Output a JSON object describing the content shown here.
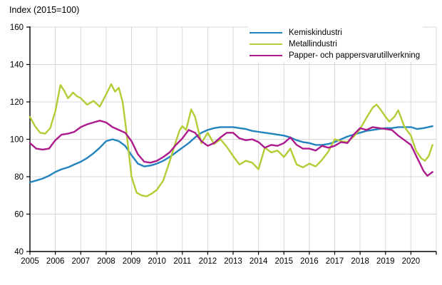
{
  "page": {
    "title": "Index (2015=100)"
  },
  "chart_data": {
    "type": "line",
    "title": "Index (2015=100)",
    "xlabel": "",
    "ylabel": "Index (2015=100)",
    "xlim": [
      2005,
      2021
    ],
    "ylim": [
      40,
      160
    ],
    "y_ticks": [
      40,
      60,
      80,
      100,
      120,
      140,
      160
    ],
    "x_ticks": [
      2005,
      2006,
      2007,
      2008,
      2009,
      2010,
      2011,
      2012,
      2013,
      2014,
      2015,
      2016,
      2017,
      2018,
      2019,
      2020
    ],
    "grid": true,
    "grid_color": "#d9d9d9",
    "axis_color": "#000000",
    "legend_position": "top-right-inside",
    "series": [
      {
        "name": "Kemiskindustri",
        "color": "#2283bd",
        "points": [
          [
            2005.0,
            77
          ],
          [
            2005.25,
            78
          ],
          [
            2005.5,
            79
          ],
          [
            2005.75,
            80.5
          ],
          [
            2006.0,
            82.5
          ],
          [
            2006.25,
            84
          ],
          [
            2006.5,
            85
          ],
          [
            2006.75,
            86.5
          ],
          [
            2007.0,
            88
          ],
          [
            2007.25,
            90
          ],
          [
            2007.5,
            92.5
          ],
          [
            2007.75,
            95.5
          ],
          [
            2008.0,
            99
          ],
          [
            2008.25,
            100
          ],
          [
            2008.5,
            99
          ],
          [
            2008.75,
            96.5
          ],
          [
            2009.0,
            91.5
          ],
          [
            2009.25,
            87
          ],
          [
            2009.5,
            85.5
          ],
          [
            2009.75,
            86
          ],
          [
            2010.0,
            87
          ],
          [
            2010.25,
            88.5
          ],
          [
            2010.5,
            90.5
          ],
          [
            2010.75,
            93
          ],
          [
            2011.0,
            95.5
          ],
          [
            2011.25,
            98
          ],
          [
            2011.5,
            101
          ],
          [
            2011.75,
            103.5
          ],
          [
            2012.0,
            105
          ],
          [
            2012.25,
            106
          ],
          [
            2012.5,
            106.5
          ],
          [
            2012.75,
            106.5
          ],
          [
            2013.0,
            106.5
          ],
          [
            2013.25,
            106
          ],
          [
            2013.5,
            105.5
          ],
          [
            2013.75,
            104.5
          ],
          [
            2014.0,
            104
          ],
          [
            2014.25,
            103.5
          ],
          [
            2014.5,
            103
          ],
          [
            2014.75,
            102.5
          ],
          [
            2015.0,
            102
          ],
          [
            2015.25,
            101
          ],
          [
            2015.5,
            99.5
          ],
          [
            2015.75,
            98.5
          ],
          [
            2016.0,
            98
          ],
          [
            2016.25,
            97
          ],
          [
            2016.5,
            97
          ],
          [
            2016.75,
            97.5
          ],
          [
            2017.0,
            98.5
          ],
          [
            2017.25,
            100
          ],
          [
            2017.5,
            101.5
          ],
          [
            2017.75,
            102.5
          ],
          [
            2018.0,
            103.5
          ],
          [
            2018.25,
            104.5
          ],
          [
            2018.5,
            105
          ],
          [
            2018.75,
            105.5
          ],
          [
            2019.0,
            106
          ],
          [
            2019.25,
            106
          ],
          [
            2019.5,
            106.5
          ],
          [
            2019.75,
            106.5
          ],
          [
            2020.0,
            106.5
          ],
          [
            2020.25,
            105.5
          ],
          [
            2020.5,
            106
          ],
          [
            2020.85,
            107
          ]
        ]
      },
      {
        "name": "Metallindustri",
        "color": "#b4cc35",
        "points": [
          [
            2005.0,
            112
          ],
          [
            2005.2,
            107
          ],
          [
            2005.4,
            103.5
          ],
          [
            2005.6,
            103
          ],
          [
            2005.8,
            106
          ],
          [
            2006.0,
            115
          ],
          [
            2006.2,
            129
          ],
          [
            2006.35,
            126
          ],
          [
            2006.5,
            122
          ],
          [
            2006.7,
            125
          ],
          [
            2006.85,
            123
          ],
          [
            2007.0,
            122
          ],
          [
            2007.25,
            118.5
          ],
          [
            2007.5,
            120.5
          ],
          [
            2007.75,
            117.5
          ],
          [
            2008.0,
            124
          ],
          [
            2008.2,
            129.5
          ],
          [
            2008.35,
            125.5
          ],
          [
            2008.5,
            127.5
          ],
          [
            2008.65,
            120
          ],
          [
            2008.8,
            104
          ],
          [
            2009.0,
            80
          ],
          [
            2009.2,
            71.5
          ],
          [
            2009.4,
            70
          ],
          [
            2009.6,
            69.5
          ],
          [
            2009.8,
            71
          ],
          [
            2010.0,
            73
          ],
          [
            2010.25,
            78
          ],
          [
            2010.5,
            88
          ],
          [
            2010.75,
            99
          ],
          [
            2010.9,
            105
          ],
          [
            2011.0,
            107
          ],
          [
            2011.15,
            105
          ],
          [
            2011.35,
            116
          ],
          [
            2011.5,
            112
          ],
          [
            2011.75,
            98
          ],
          [
            2012.0,
            103.5
          ],
          [
            2012.25,
            97.5
          ],
          [
            2012.5,
            100
          ],
          [
            2012.75,
            96
          ],
          [
            2013.0,
            91
          ],
          [
            2013.25,
            86.5
          ],
          [
            2013.5,
            88.5
          ],
          [
            2013.75,
            87.5
          ],
          [
            2014.0,
            84
          ],
          [
            2014.25,
            95.5
          ],
          [
            2014.5,
            93
          ],
          [
            2014.75,
            94
          ],
          [
            2015.0,
            90.5
          ],
          [
            2015.25,
            95
          ],
          [
            2015.5,
            86.5
          ],
          [
            2015.75,
            85
          ],
          [
            2016.0,
            87
          ],
          [
            2016.25,
            85.5
          ],
          [
            2016.5,
            89
          ],
          [
            2016.75,
            93.5
          ],
          [
            2017.0,
            100
          ],
          [
            2017.25,
            99
          ],
          [
            2017.5,
            98.5
          ],
          [
            2017.75,
            101.5
          ],
          [
            2018.0,
            105.5
          ],
          [
            2018.25,
            111.5
          ],
          [
            2018.5,
            117
          ],
          [
            2018.65,
            118.5
          ],
          [
            2018.8,
            116
          ],
          [
            2019.0,
            112
          ],
          [
            2019.15,
            109.5
          ],
          [
            2019.35,
            112
          ],
          [
            2019.5,
            115.5
          ],
          [
            2019.75,
            106.5
          ],
          [
            2020.0,
            102
          ],
          [
            2020.2,
            94
          ],
          [
            2020.4,
            90
          ],
          [
            2020.55,
            88.5
          ],
          [
            2020.7,
            91
          ],
          [
            2020.85,
            97
          ]
        ]
      },
      {
        "name": "Papper- och pappersvarutillverkning",
        "color": "#ac1a8c",
        "points": [
          [
            2005.0,
            98
          ],
          [
            2005.25,
            95
          ],
          [
            2005.5,
            94.5
          ],
          [
            2005.75,
            95
          ],
          [
            2006.0,
            99.5
          ],
          [
            2006.25,
            102.5
          ],
          [
            2006.5,
            103
          ],
          [
            2006.75,
            104
          ],
          [
            2007.0,
            106.5
          ],
          [
            2007.25,
            108
          ],
          [
            2007.5,
            109
          ],
          [
            2007.75,
            110
          ],
          [
            2008.0,
            109
          ],
          [
            2008.25,
            106.5
          ],
          [
            2008.5,
            105
          ],
          [
            2008.75,
            103.5
          ],
          [
            2009.0,
            99
          ],
          [
            2009.25,
            92
          ],
          [
            2009.5,
            88
          ],
          [
            2009.75,
            87.5
          ],
          [
            2010.0,
            88.5
          ],
          [
            2010.25,
            90.5
          ],
          [
            2010.5,
            93
          ],
          [
            2010.75,
            97
          ],
          [
            2011.0,
            100.5
          ],
          [
            2011.25,
            105
          ],
          [
            2011.5,
            103.5
          ],
          [
            2011.75,
            99
          ],
          [
            2012.0,
            96.5
          ],
          [
            2012.25,
            98
          ],
          [
            2012.5,
            101
          ],
          [
            2012.75,
            103.5
          ],
          [
            2013.0,
            103.5
          ],
          [
            2013.25,
            100.5
          ],
          [
            2013.5,
            99.5
          ],
          [
            2013.75,
            100
          ],
          [
            2014.0,
            98.5
          ],
          [
            2014.25,
            95.5
          ],
          [
            2014.5,
            97
          ],
          [
            2014.75,
            96.5
          ],
          [
            2015.0,
            98
          ],
          [
            2015.25,
            101
          ],
          [
            2015.5,
            97
          ],
          [
            2015.75,
            95
          ],
          [
            2016.0,
            95
          ],
          [
            2016.25,
            94
          ],
          [
            2016.5,
            96.5
          ],
          [
            2016.75,
            95.5
          ],
          [
            2017.0,
            96.5
          ],
          [
            2017.25,
            98.5
          ],
          [
            2017.5,
            98
          ],
          [
            2017.75,
            102.5
          ],
          [
            2018.0,
            106
          ],
          [
            2018.25,
            105
          ],
          [
            2018.5,
            106.5
          ],
          [
            2018.75,
            106
          ],
          [
            2019.0,
            105.5
          ],
          [
            2019.25,
            105
          ],
          [
            2019.5,
            102
          ],
          [
            2019.75,
            99.5
          ],
          [
            2020.0,
            97
          ],
          [
            2020.25,
            90
          ],
          [
            2020.5,
            83
          ],
          [
            2020.65,
            80.5
          ],
          [
            2020.85,
            82.5
          ]
        ]
      }
    ]
  }
}
